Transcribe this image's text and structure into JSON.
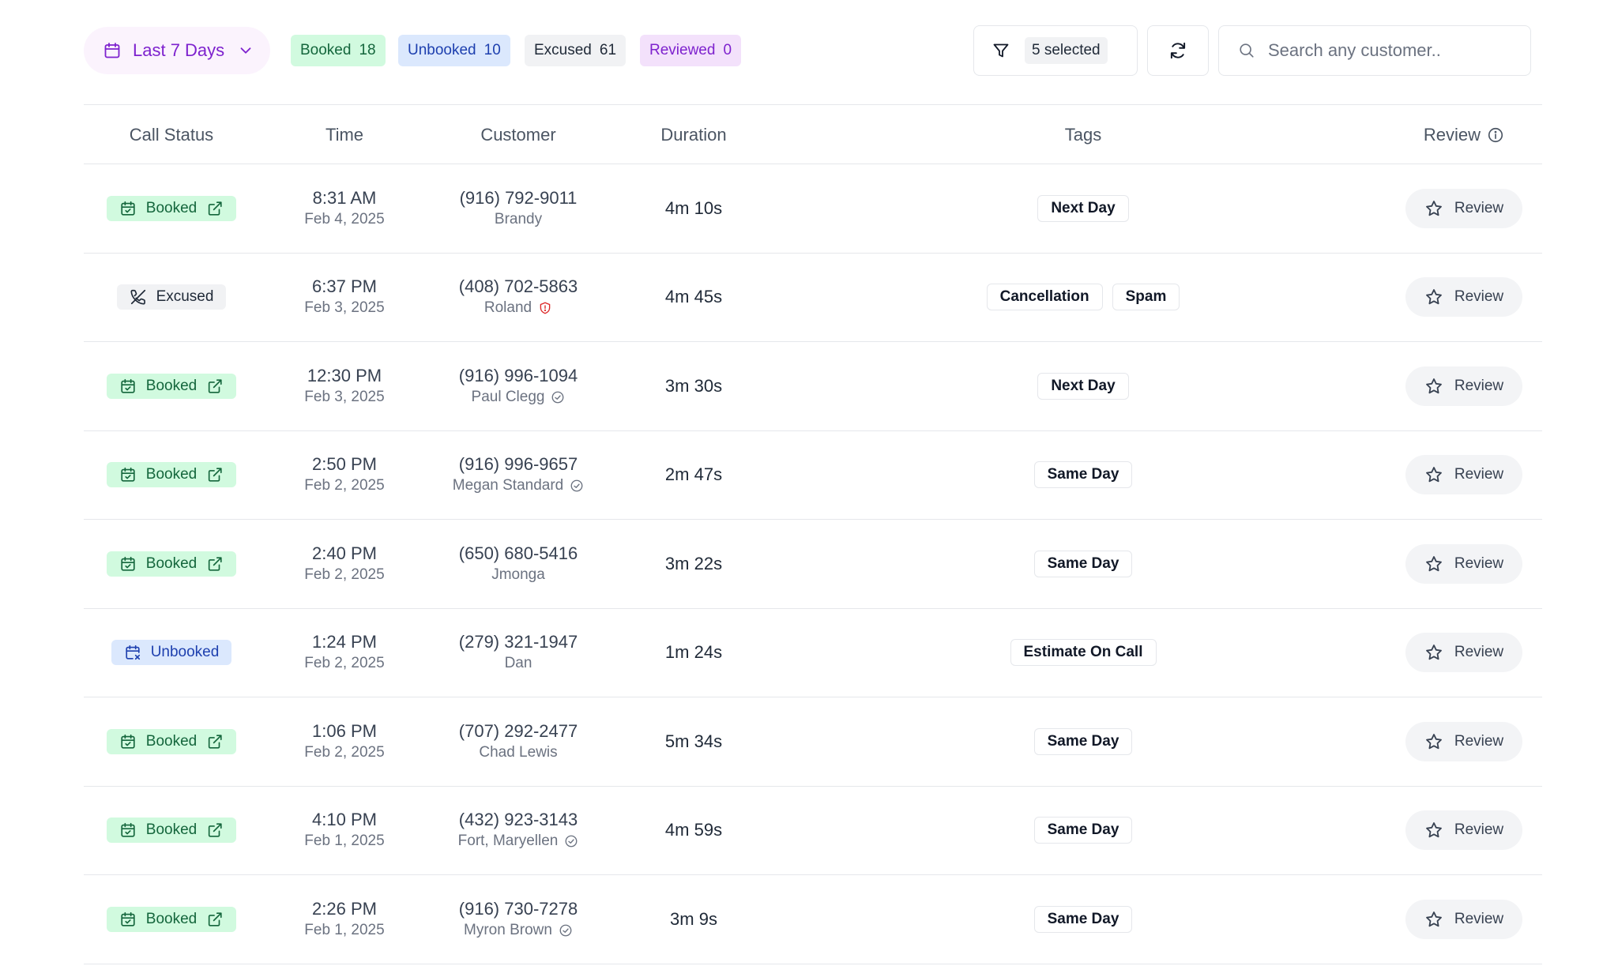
{
  "toolbar": {
    "date_range": "Last 7 Days",
    "stats": [
      {
        "label": "Booked",
        "count": "18"
      },
      {
        "label": "Unbooked",
        "count": "10"
      },
      {
        "label": "Excused",
        "count": "61"
      },
      {
        "label": "Reviewed",
        "count": "0"
      }
    ],
    "filter_selected": "5 selected",
    "search_placeholder": "Search any customer.."
  },
  "table": {
    "columns": {
      "status": "Call Status",
      "time": "Time",
      "customer": "Customer",
      "duration": "Duration",
      "tags": "Tags",
      "review": "Review"
    },
    "review_button_label": "Review",
    "rows": [
      {
        "status": "Booked",
        "time": "8:31 AM",
        "date": "Feb 4, 2025",
        "phone": "(916) 792-9011",
        "name": "Brandy",
        "name_icon": "",
        "duration": "4m 10s",
        "tags": [
          "Next Day"
        ]
      },
      {
        "status": "Excused",
        "time": "6:37 PM",
        "date": "Feb 3, 2025",
        "phone": "(408) 702-5863",
        "name": "Roland",
        "name_icon": "shield-alert-icon",
        "duration": "4m 45s",
        "tags": [
          "Cancellation",
          "Spam"
        ]
      },
      {
        "status": "Booked",
        "time": "12:30 PM",
        "date": "Feb 3, 2025",
        "phone": "(916) 996-1094",
        "name": "Paul Clegg",
        "name_icon": "verified-check-icon",
        "duration": "3m 30s",
        "tags": [
          "Next Day"
        ]
      },
      {
        "status": "Booked",
        "time": "2:50 PM",
        "date": "Feb 2, 2025",
        "phone": "(916) 996-9657",
        "name": "Megan Standard",
        "name_icon": "verified-check-icon",
        "duration": "2m 47s",
        "tags": [
          "Same Day"
        ]
      },
      {
        "status": "Booked",
        "time": "2:40 PM",
        "date": "Feb 2, 2025",
        "phone": "(650) 680-5416",
        "name": "Jmonga",
        "name_icon": "",
        "duration": "3m 22s",
        "tags": [
          "Same Day"
        ]
      },
      {
        "status": "Unbooked",
        "time": "1:24 PM",
        "date": "Feb 2, 2025",
        "phone": "(279) 321-1947",
        "name": "Dan",
        "name_icon": "",
        "duration": "1m 24s",
        "tags": [
          "Estimate On Call"
        ]
      },
      {
        "status": "Booked",
        "time": "1:06 PM",
        "date": "Feb 2, 2025",
        "phone": "(707) 292-2477",
        "name": "Chad Lewis",
        "name_icon": "",
        "duration": "5m 34s",
        "tags": [
          "Same Day"
        ]
      },
      {
        "status": "Booked",
        "time": "4:10 PM",
        "date": "Feb 1, 2025",
        "phone": "(432) 923-3143",
        "name": "Fort, Maryellen",
        "name_icon": "verified-check-icon",
        "duration": "4m 59s",
        "tags": [
          "Same Day"
        ]
      },
      {
        "status": "Booked",
        "time": "2:26 PM",
        "date": "Feb 1, 2025",
        "phone": "(916) 730-7278",
        "name": "Myron Brown",
        "name_icon": "verified-check-icon",
        "duration": "3m 9s",
        "tags": [
          "Same Day"
        ]
      }
    ]
  },
  "colors": {
    "booked_bg": "#d1fadf",
    "booked_fg": "#14663c",
    "unbooked_bg": "#dbe8fd",
    "unbooked_fg": "#1e40af",
    "excused_bg": "#f1f2f4",
    "reviewed_bg": "#f3e1fb",
    "accent_purple": "#7e22ce",
    "alert_red": "#dc2626"
  }
}
